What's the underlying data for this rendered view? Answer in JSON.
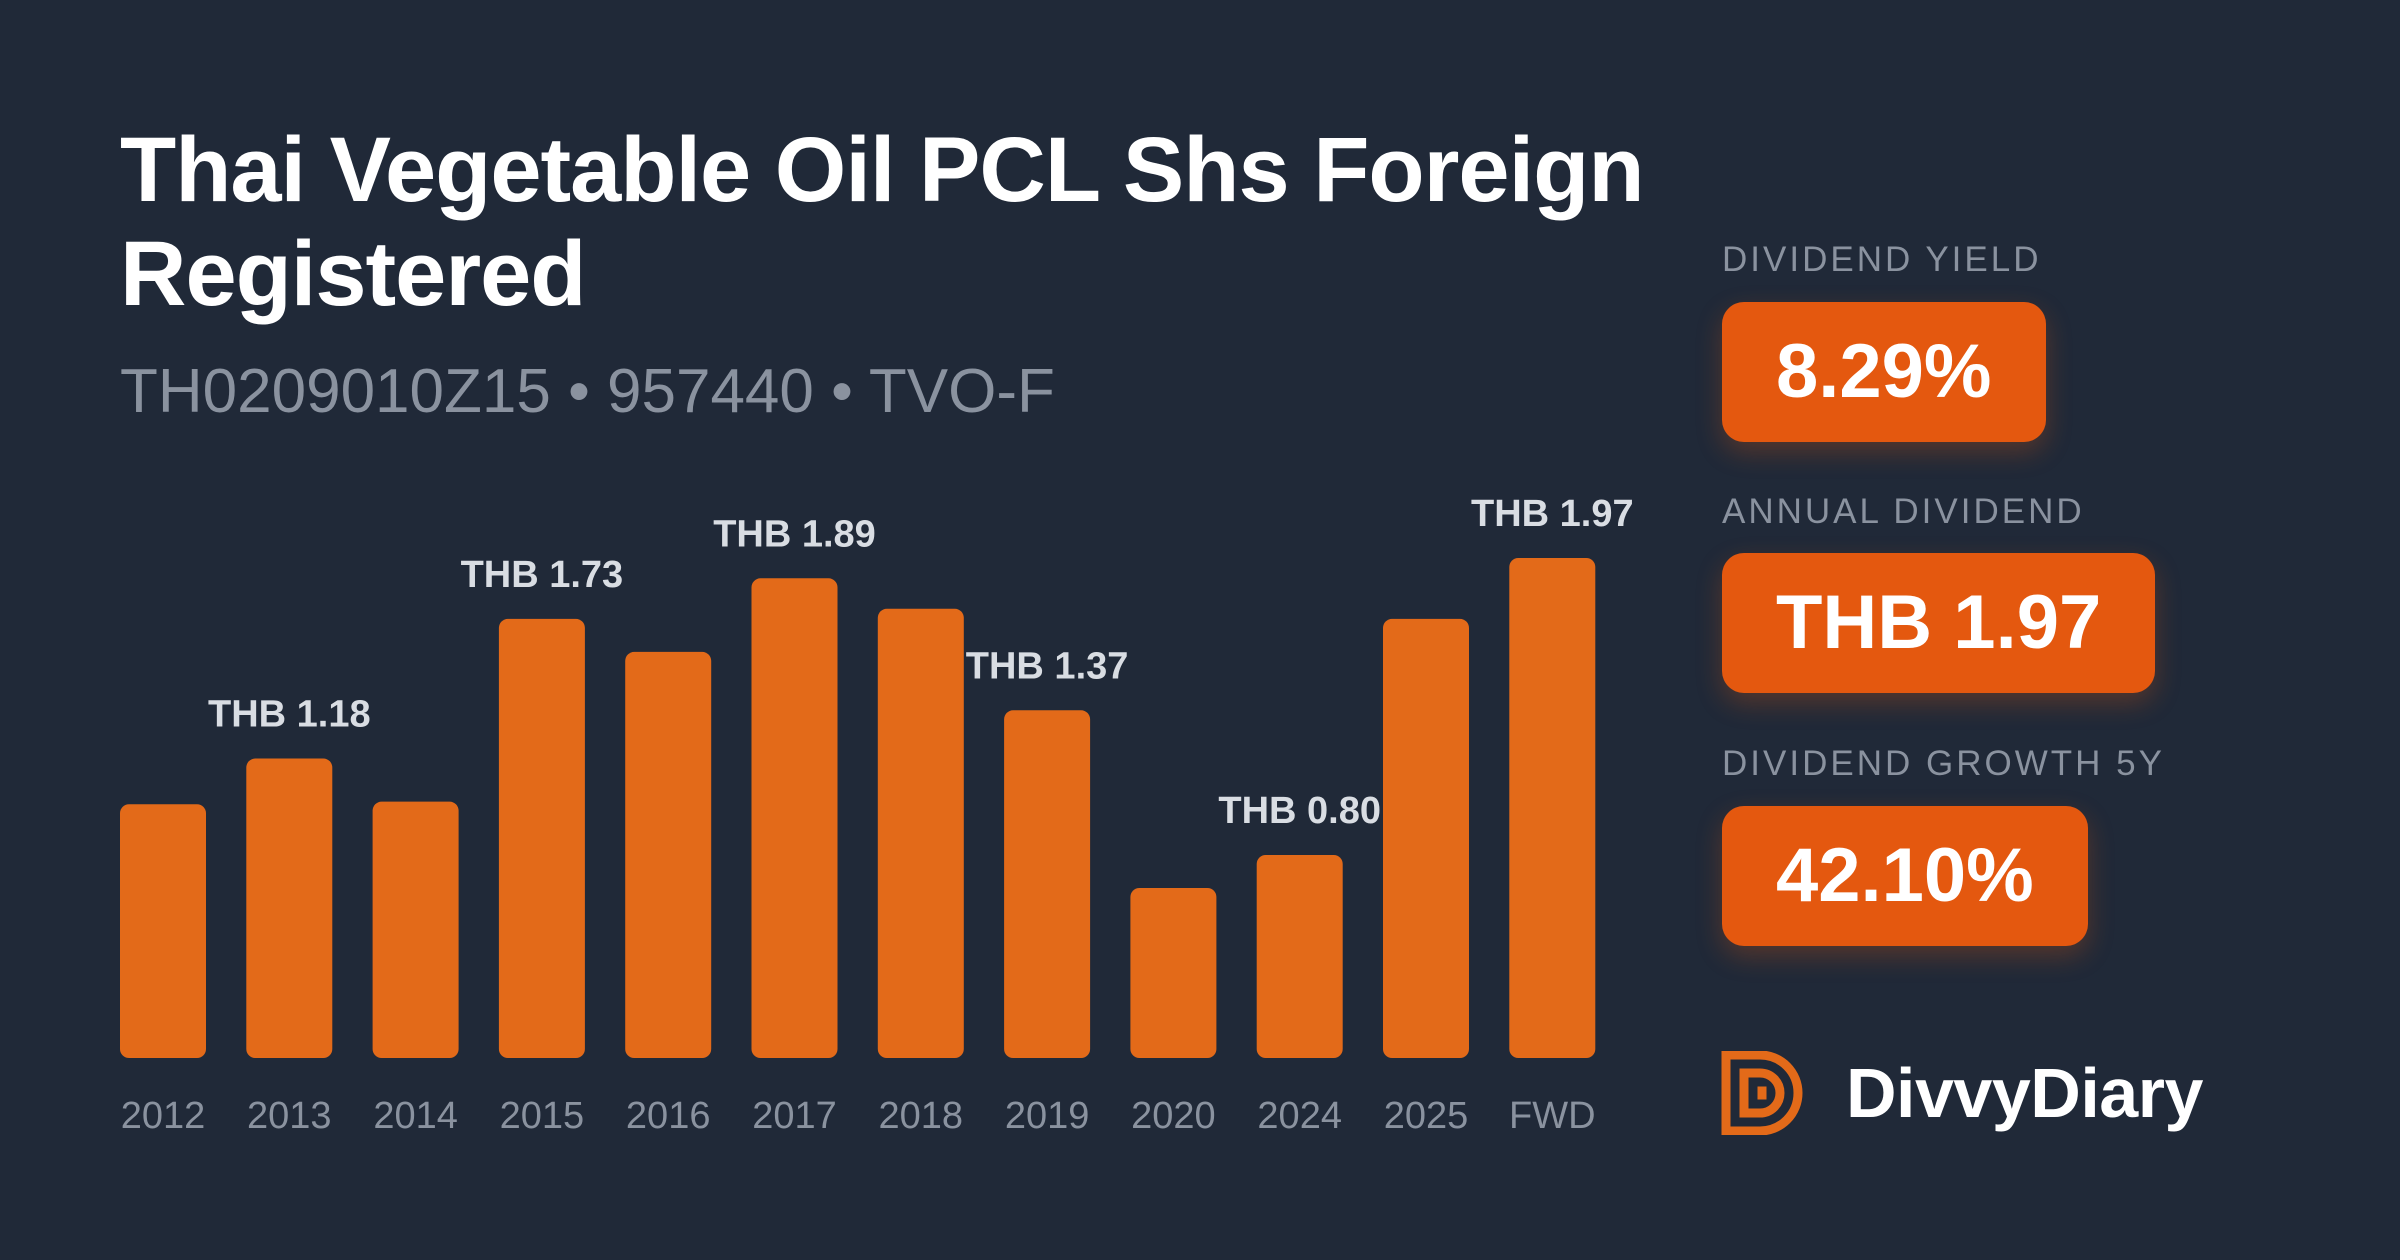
{
  "header": {
    "title": "Thai Vegetable Oil PCL Shs Foreign Registered",
    "subtitle": "TH0209010Z15 • 957440 • TVO-F"
  },
  "stats": {
    "yield_label": "DIVIDEND YIELD",
    "yield_value": "8.29%",
    "annual_label": "ANNUAL DIVIDEND",
    "annual_value": "THB 1.97",
    "growth_label": "DIVIDEND GROWTH 5Y",
    "growth_value": "42.10%"
  },
  "brand": {
    "name": "DivvyDiary",
    "icon": "divvydiary-logo-icon"
  },
  "colors": {
    "background": "#202938",
    "bar": "#e36a19",
    "pill": "#e4580f",
    "label": "#8a929f"
  },
  "chart_data": {
    "type": "bar",
    "categories": [
      "2012",
      "2013",
      "2014",
      "2015",
      "2016",
      "2017",
      "2018",
      "2019",
      "2020",
      "2024",
      "2025",
      "FWD"
    ],
    "values": [
      1.0,
      1.18,
      1.01,
      1.73,
      1.6,
      1.89,
      1.77,
      1.37,
      0.67,
      0.8,
      1.73,
      1.97
    ],
    "data_labels": [
      "",
      "THB 1.18",
      "",
      "THB 1.73",
      "",
      "THB 1.89",
      "",
      "THB 1.37",
      "",
      "THB 0.80",
      "",
      "THB 1.97"
    ],
    "ylim": [
      0,
      1.97
    ],
    "grid": false,
    "legend": "none"
  }
}
